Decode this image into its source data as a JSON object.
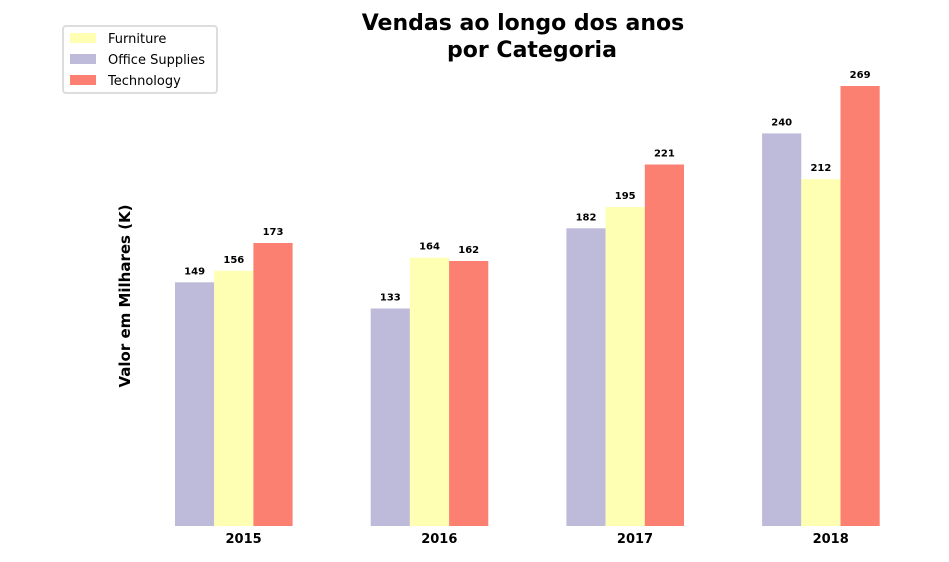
{
  "chart_data": {
    "type": "bar",
    "title_line1": "Vendas ao longo dos anos",
    "title_line2": "por Categoria",
    "xlabel": "",
    "ylabel": "Valor em Milhares (K)",
    "categories": [
      "2015",
      "2016",
      "2017",
      "2018"
    ],
    "series": [
      {
        "name": "Office Supplies",
        "color": "#bebada",
        "values": [
          149,
          133,
          182,
          240
        ]
      },
      {
        "name": "Furniture",
        "color": "#ffffb3",
        "values": [
          156,
          164,
          195,
          212
        ]
      },
      {
        "name": "Technology",
        "color": "#fb8072",
        "values": [
          173,
          162,
          221,
          269
        ]
      }
    ],
    "legend": {
      "placement": "top-left",
      "entries": [
        {
          "name": "Furniture",
          "color": "#ffffb3"
        },
        {
          "name": "Office Supplies",
          "color": "#bebada"
        },
        {
          "name": "Technology",
          "color": "#fb8072"
        }
      ]
    },
    "ylim": [
      0,
      269
    ],
    "grid": false
  }
}
